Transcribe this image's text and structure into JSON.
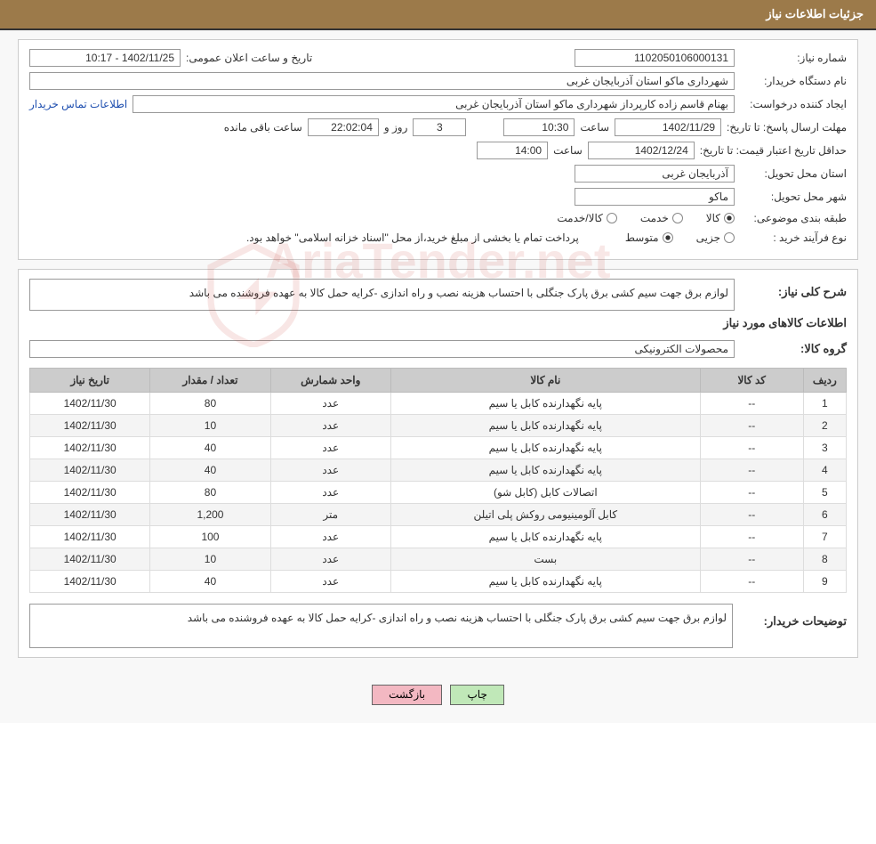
{
  "header": {
    "title": "جزئیات اطلاعات نیاز"
  },
  "info": {
    "need_no_label": "شماره نیاز:",
    "need_no": "1102050106000131",
    "announce_label": "تاریخ و ساعت اعلان عمومی:",
    "announce_value": "1402/11/25 - 10:17",
    "buyer_org_label": "نام دستگاه خریدار:",
    "buyer_org": "شهرداری ماکو  استان آذربایجان غربی",
    "creator_label": "ایجاد کننده درخواست:",
    "creator": "بهنام قاسم زاده کارپرداز شهرداری ماکو  استان آذربایجان غربی",
    "contact_link": "اطلاعات تماس خریدار",
    "deadline_label": "مهلت ارسال پاسخ: تا تاریخ:",
    "deadline_date": "1402/11/29",
    "hour_label": "ساعت",
    "deadline_time": "10:30",
    "remain_days": "3",
    "days_and": "روز و",
    "remain_clock": "22:02:04",
    "remain_suffix": "ساعت باقی مانده",
    "valid_label": "حداقل تاریخ اعتبار قیمت: تا تاریخ:",
    "valid_date": "1402/12/24",
    "valid_time": "14:00",
    "delivery_prov_label": "استان محل تحویل:",
    "delivery_prov": "آذربایجان غربی",
    "delivery_city_label": "شهر محل تحویل:",
    "delivery_city": "ماکو",
    "subject_class_label": "طبقه بندی موضوعی:",
    "radio_goods": "کالا",
    "radio_service": "خدمت",
    "radio_goods_service": "کالا/خدمت",
    "purchase_type_label": "نوع فرآیند خرید :",
    "radio_partial": "جزیی",
    "radio_medium": "متوسط",
    "purchase_note": "پرداخت تمام یا بخشی از مبلغ خرید،از محل \"اسناد خزانه اسلامی\" خواهد بود.",
    "need_desc_label": "شرح کلی نیاز:",
    "need_desc": "لوازم برق جهت سیم کشی برق پارک جنگلی با احتساب هزینه نصب و راه اندازی -کرایه حمل کالا به عهده فروشنده می باشد",
    "items_title": "اطلاعات کالاهای مورد نیاز",
    "group_label": "گروه کالا:",
    "group_value": "محصولات الکترونیکی",
    "buyer_notes_label": "توضیحات خریدار:",
    "buyer_notes": "لوازم برق جهت سیم کشی برق پارک جنگلی با احتساب هزینه نصب و راه اندازی -کرایه حمل کالا به عهده فروشنده می باشد"
  },
  "table": {
    "headers": {
      "row": "ردیف",
      "code": "کد کالا",
      "name": "نام کالا",
      "unit": "واحد شمارش",
      "qty": "تعداد / مقدار",
      "date": "تاریخ نیاز"
    },
    "col_widths": {
      "row": "5%",
      "code": "12%",
      "name": "36%",
      "unit": "14%",
      "qty": "14%",
      "date": "14%"
    },
    "rows": [
      {
        "n": "1",
        "code": "--",
        "name": "پایه نگهدارنده کابل یا سیم",
        "unit": "عدد",
        "qty": "80",
        "date": "1402/11/30"
      },
      {
        "n": "2",
        "code": "--",
        "name": "پایه نگهدارنده کابل یا سیم",
        "unit": "عدد",
        "qty": "10",
        "date": "1402/11/30"
      },
      {
        "n": "3",
        "code": "--",
        "name": "پایه نگهدارنده کابل یا سیم",
        "unit": "عدد",
        "qty": "40",
        "date": "1402/11/30"
      },
      {
        "n": "4",
        "code": "--",
        "name": "پایه نگهدارنده کابل یا سیم",
        "unit": "عدد",
        "qty": "40",
        "date": "1402/11/30"
      },
      {
        "n": "5",
        "code": "--",
        "name": "اتصالات کابل (کابل شو)",
        "unit": "عدد",
        "qty": "80",
        "date": "1402/11/30"
      },
      {
        "n": "6",
        "code": "--",
        "name": "کابل آلومینیومی روکش پلی اتیلن",
        "unit": "متر",
        "qty": "1,200",
        "date": "1402/11/30"
      },
      {
        "n": "7",
        "code": "--",
        "name": "پایه نگهدارنده کابل یا سیم",
        "unit": "عدد",
        "qty": "100",
        "date": "1402/11/30"
      },
      {
        "n": "8",
        "code": "--",
        "name": "بست",
        "unit": "عدد",
        "qty": "10",
        "date": "1402/11/30"
      },
      {
        "n": "9",
        "code": "--",
        "name": "پایه نگهدارنده کابل یا سیم",
        "unit": "عدد",
        "qty": "40",
        "date": "1402/11/30"
      }
    ]
  },
  "buttons": {
    "print": "چاپ",
    "back": "بازگشت"
  },
  "watermark": "AriaTender.net",
  "style": {
    "header_bg": "#9c7a4a",
    "header_fg": "#ffffff",
    "table_header_bg": "#cccccc",
    "btn_print_bg": "#c0e8b8",
    "btn_back_bg": "#f3b8c2",
    "link_color": "#2050b0",
    "watermark_color": "rgba(200,60,50,0.12)"
  }
}
